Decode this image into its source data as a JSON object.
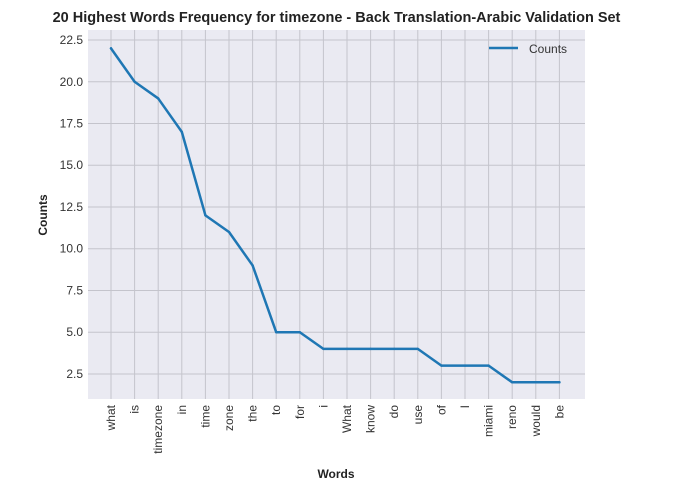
{
  "chart_data": {
    "type": "line",
    "title": "20 Highest Words Frequency for timezone - Back Translation-Arabic Validation Set",
    "xlabel": "Words",
    "ylabel": "Counts",
    "categories": [
      "what",
      "is",
      "timezone",
      "in",
      "time",
      "zone",
      "the",
      "to",
      "for",
      "i",
      "What",
      "know",
      "do",
      "use",
      "of",
      "I",
      "miami",
      "reno",
      "would",
      "be"
    ],
    "series": [
      {
        "name": "Counts",
        "values": [
          22,
          20,
          19,
          17,
          12,
          11,
          9,
          5,
          5,
          4,
          4,
          4,
          4,
          4,
          3,
          3,
          3,
          2,
          2,
          2
        ],
        "color": "#1f77b4"
      }
    ],
    "ylim": [
      1.0,
      23.1
    ],
    "yticks": [
      2.5,
      5.0,
      7.5,
      10.0,
      12.5,
      15.0,
      17.5,
      20.0,
      22.5
    ],
    "ytick_labels": [
      "2.5",
      "5.0",
      "7.5",
      "10.0",
      "12.5",
      "15.0",
      "17.5",
      "20.0",
      "22.5"
    ],
    "grid": true,
    "legend_position": "top-right",
    "colors": {
      "plot_background": "#eaeaf2",
      "grid": "#c4c4cc",
      "line": "#1f77b4"
    }
  }
}
